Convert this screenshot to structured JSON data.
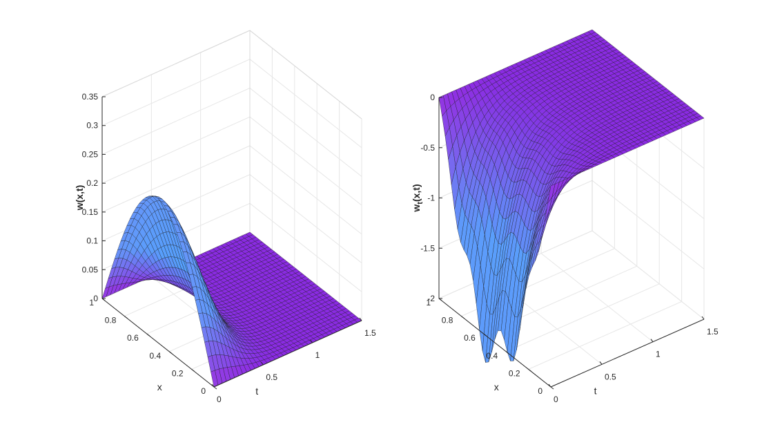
{
  "chart_data": [
    {
      "type": "surface",
      "zlabel": "w(x,t)",
      "xlabel": "x",
      "tlabel": "t",
      "x_range": [
        0,
        1
      ],
      "t_range": [
        0,
        1.5
      ],
      "z_range": [
        0,
        0.35
      ],
      "x_ticks": [
        "0",
        "0.2",
        "0.4",
        "0.6",
        "0.8",
        "1"
      ],
      "t_ticks": [
        "0",
        "0.5",
        "1",
        "1.5"
      ],
      "z_ticks": [
        "0",
        "0.05",
        "0.1",
        "0.15",
        "0.2",
        "0.25",
        "0.3",
        "0.35"
      ],
      "peak_value": 0.25,
      "peak_at_x": 0.5,
      "peak_at_t": 0,
      "surface_colormap": [
        "#8a2be2",
        "#d24de0",
        "#4aa8ff"
      ],
      "grid": true
    },
    {
      "type": "surface",
      "zlabel": "w",
      "zlabel_subscript": "t",
      "zlabel_suffix": "(x,t)",
      "xlabel": "x",
      "tlabel": "t",
      "x_range": [
        0,
        1
      ],
      "t_range": [
        0,
        1.5
      ],
      "z_range": [
        -2,
        0
      ],
      "x_ticks": [
        "0",
        "0.2",
        "0.4",
        "0.6",
        "0.8",
        "1"
      ],
      "t_ticks": [
        "0",
        "0.5",
        "1",
        "1.5"
      ],
      "z_ticks": [
        "-2",
        "-1.5",
        "-1",
        "-0.5",
        "0"
      ],
      "min_value": -2.1,
      "min_at_x": 0.5,
      "min_at_t": 0,
      "surface_colormap": [
        "#8a2be2",
        "#d24de0",
        "#4aa8ff"
      ],
      "grid": true
    }
  ]
}
